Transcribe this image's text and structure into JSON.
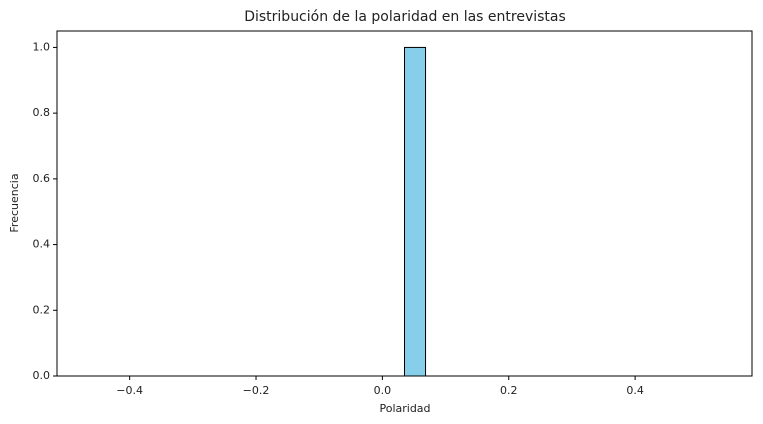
{
  "chart_data": {
    "type": "histogram",
    "title": "Distribución de la polaridad en las entrevistas",
    "x_label": "Polaridad",
    "y_label": "Frecuencia",
    "bins": [
      -0.465,
      -0.4317,
      -0.3983,
      -0.365,
      -0.3317,
      -0.2983,
      -0.265,
      -0.2317,
      -0.1983,
      -0.165,
      -0.1317,
      -0.0983,
      -0.065,
      -0.0317,
      0.0017,
      0.035,
      0.0683,
      0.1017,
      0.135,
      0.1683,
      0.2017,
      0.235,
      0.2683,
      0.3017,
      0.335,
      0.3683,
      0.4017,
      0.435,
      0.4683,
      0.5017,
      0.535
    ],
    "values": [
      0,
      0,
      0,
      0,
      0,
      0,
      0,
      0,
      0,
      0,
      0,
      0,
      0,
      0,
      0,
      1,
      0,
      0,
      0,
      0,
      0,
      0,
      0,
      0,
      0,
      0,
      0,
      0,
      0,
      0
    ],
    "color": "#87ceeb",
    "edgecolor": "#000000",
    "xlim": [
      -0.515,
      0.585
    ],
    "ylim": [
      0,
      1.05
    ],
    "xticks": [
      {
        "value": -0.4,
        "label": "−0.4"
      },
      {
        "value": -0.2,
        "label": "−0.2"
      },
      {
        "value": 0.0,
        "label": "0.0"
      },
      0.2,
      0.4
    ],
    "yticks": [
      {
        "value": 0.0,
        "label": "0.0"
      },
      0.2,
      0.4,
      0.6,
      0.8,
      {
        "value": 1.0,
        "label": "1.0"
      }
    ],
    "grid": false
  }
}
